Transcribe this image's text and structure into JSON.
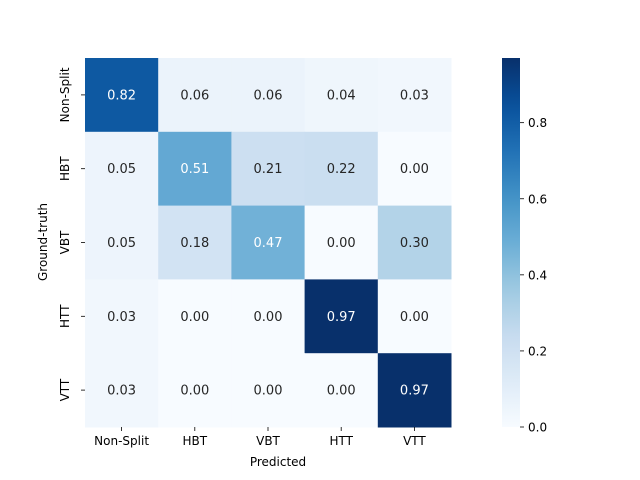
{
  "chart_data": {
    "type": "heatmap",
    "title": "",
    "xlabel": "Predicted",
    "ylabel": "Ground-truth",
    "x_categories": [
      "Non-Split",
      "HBT",
      "VBT",
      "HTT",
      "VTT"
    ],
    "y_categories": [
      "Non-Split",
      "HBT",
      "VBT",
      "HTT",
      "VTT"
    ],
    "values": [
      [
        0.82,
        0.06,
        0.06,
        0.04,
        0.03
      ],
      [
        0.05,
        0.51,
        0.21,
        0.22,
        0.0
      ],
      [
        0.05,
        0.18,
        0.47,
        0.0,
        0.3
      ],
      [
        0.03,
        0.0,
        0.0,
        0.97,
        0.0
      ],
      [
        0.03,
        0.0,
        0.0,
        0.0,
        0.97
      ]
    ],
    "cell_labels": [
      [
        "0.82",
        "0.06",
        "0.06",
        "0.04",
        "0.03"
      ],
      [
        "0.05",
        "0.51",
        "0.21",
        "0.22",
        "0.00"
      ],
      [
        "0.05",
        "0.18",
        "0.47",
        "0.00",
        "0.30"
      ],
      [
        "0.03",
        "0.00",
        "0.00",
        "0.97",
        "0.00"
      ],
      [
        "0.03",
        "0.00",
        "0.00",
        "0.00",
        "0.97"
      ]
    ],
    "colormap": "Blues",
    "colorbar": {
      "range": [
        0.0,
        0.97
      ],
      "ticks": [
        0.0,
        0.2,
        0.4,
        0.6,
        0.8
      ],
      "tick_labels": [
        "0.0",
        "0.2",
        "0.4",
        "0.6",
        "0.8"
      ]
    },
    "grid": false,
    "legend": "none"
  }
}
